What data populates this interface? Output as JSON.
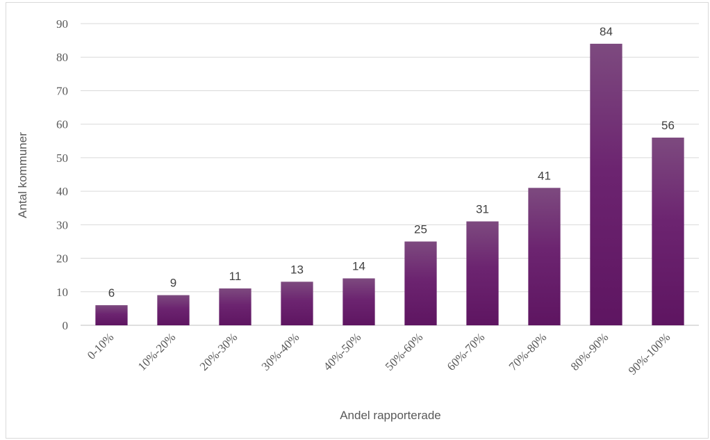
{
  "chart_data": {
    "type": "bar",
    "categories": [
      "0-10%",
      "10%-20%",
      "20%-30%",
      "30%-40%",
      "40%-50%",
      "50%-60%",
      "60%-70%",
      "70%-80%",
      "80%-90%",
      "90%-100%"
    ],
    "values": [
      6,
      9,
      11,
      13,
      14,
      25,
      31,
      41,
      84,
      56
    ],
    "data_labels": [
      "6",
      "9",
      "11",
      "13",
      "14",
      "25",
      "31",
      "41",
      "84",
      "56"
    ],
    "xlabel": "Andel rapporterade",
    "ylabel": "Antal kommuner",
    "ylim": [
      0,
      90
    ],
    "yticks": [
      "0",
      "10",
      "20",
      "30",
      "40",
      "50",
      "60",
      "70",
      "80",
      "90"
    ],
    "grid": true,
    "legend": "none",
    "colors": {
      "bar_top": "#7d4a7f",
      "bar_bottom": "#5e1561",
      "grid": "#d9d9d9",
      "text": "#595959"
    }
  }
}
